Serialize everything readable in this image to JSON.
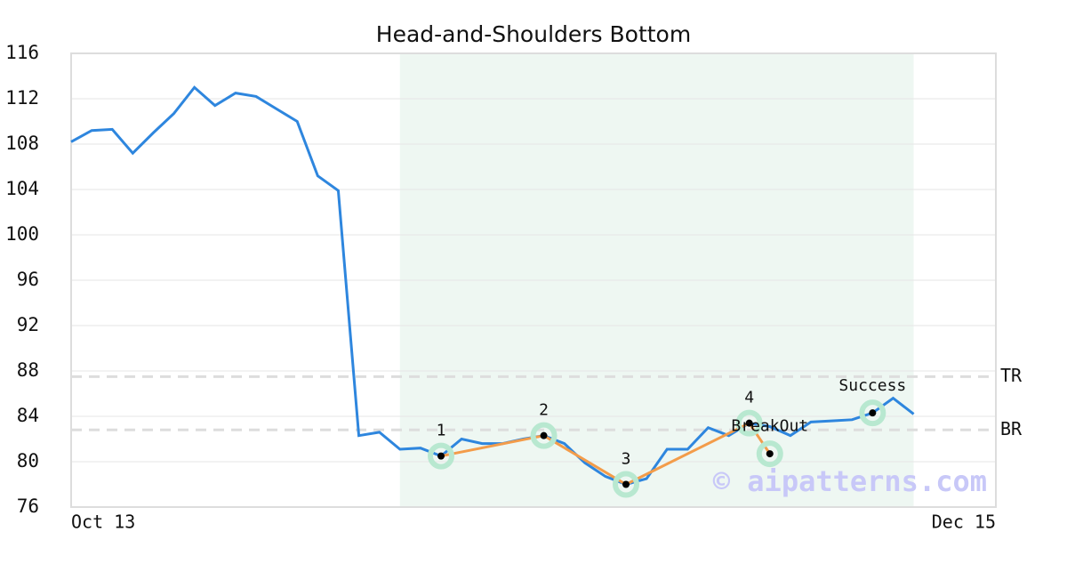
{
  "chart_data": {
    "type": "line",
    "title": "Head-and-Shoulders Bottom",
    "x": [
      0,
      1,
      2,
      3,
      4,
      5,
      6,
      7,
      8,
      9,
      10,
      11,
      12,
      13,
      14,
      15,
      16,
      17,
      18,
      19,
      20,
      21,
      22,
      23,
      24,
      25,
      26,
      27,
      28,
      29,
      30,
      31,
      32,
      33,
      34,
      35,
      36,
      37,
      38,
      39,
      40,
      41
    ],
    "series": [
      {
        "color": "#2e86de",
        "values": [
          108.2,
          109.2,
          109.3,
          107.2,
          109.0,
          110.7,
          113.0,
          111.4,
          112.5,
          112.2,
          111.1,
          110.0,
          105.2,
          103.9,
          82.3,
          82.6,
          81.1,
          81.2,
          80.5,
          82.0,
          81.6,
          81.6,
          82.0,
          82.3,
          81.6,
          79.9,
          78.7,
          78.0,
          78.5,
          81.1,
          81.1,
          83.0,
          82.3,
          83.4,
          83.1,
          82.3,
          83.5,
          83.6,
          83.7,
          84.3,
          85.6,
          84.2
        ]
      }
    ],
    "pattern": {
      "color": "#f39c4a",
      "x": [
        18,
        23,
        27,
        33,
        34
      ],
      "y": [
        80.5,
        82.3,
        78.0,
        83.4,
        80.7
      ],
      "labels": [
        "1",
        "2",
        "3",
        "4",
        "BreakOut"
      ]
    },
    "success": {
      "x": 39,
      "y": 84.3,
      "label": "Success"
    },
    "shade": [
      16,
      41
    ],
    "hlines": [
      {
        "value": 87.5,
        "label": "TR"
      },
      {
        "value": 82.8,
        "label": "BR"
      }
    ],
    "watermark": "© aipatterns.com",
    "xlim": [
      0,
      45
    ],
    "xticks": [
      {
        "value": 0,
        "label": "Oct 13"
      },
      {
        "value": 45,
        "label": "Dec 15"
      }
    ],
    "ylim": [
      76,
      116
    ],
    "yticks": [
      76,
      80,
      84,
      88,
      92,
      96,
      100,
      104,
      108,
      112,
      116
    ],
    "grid": true
  }
}
